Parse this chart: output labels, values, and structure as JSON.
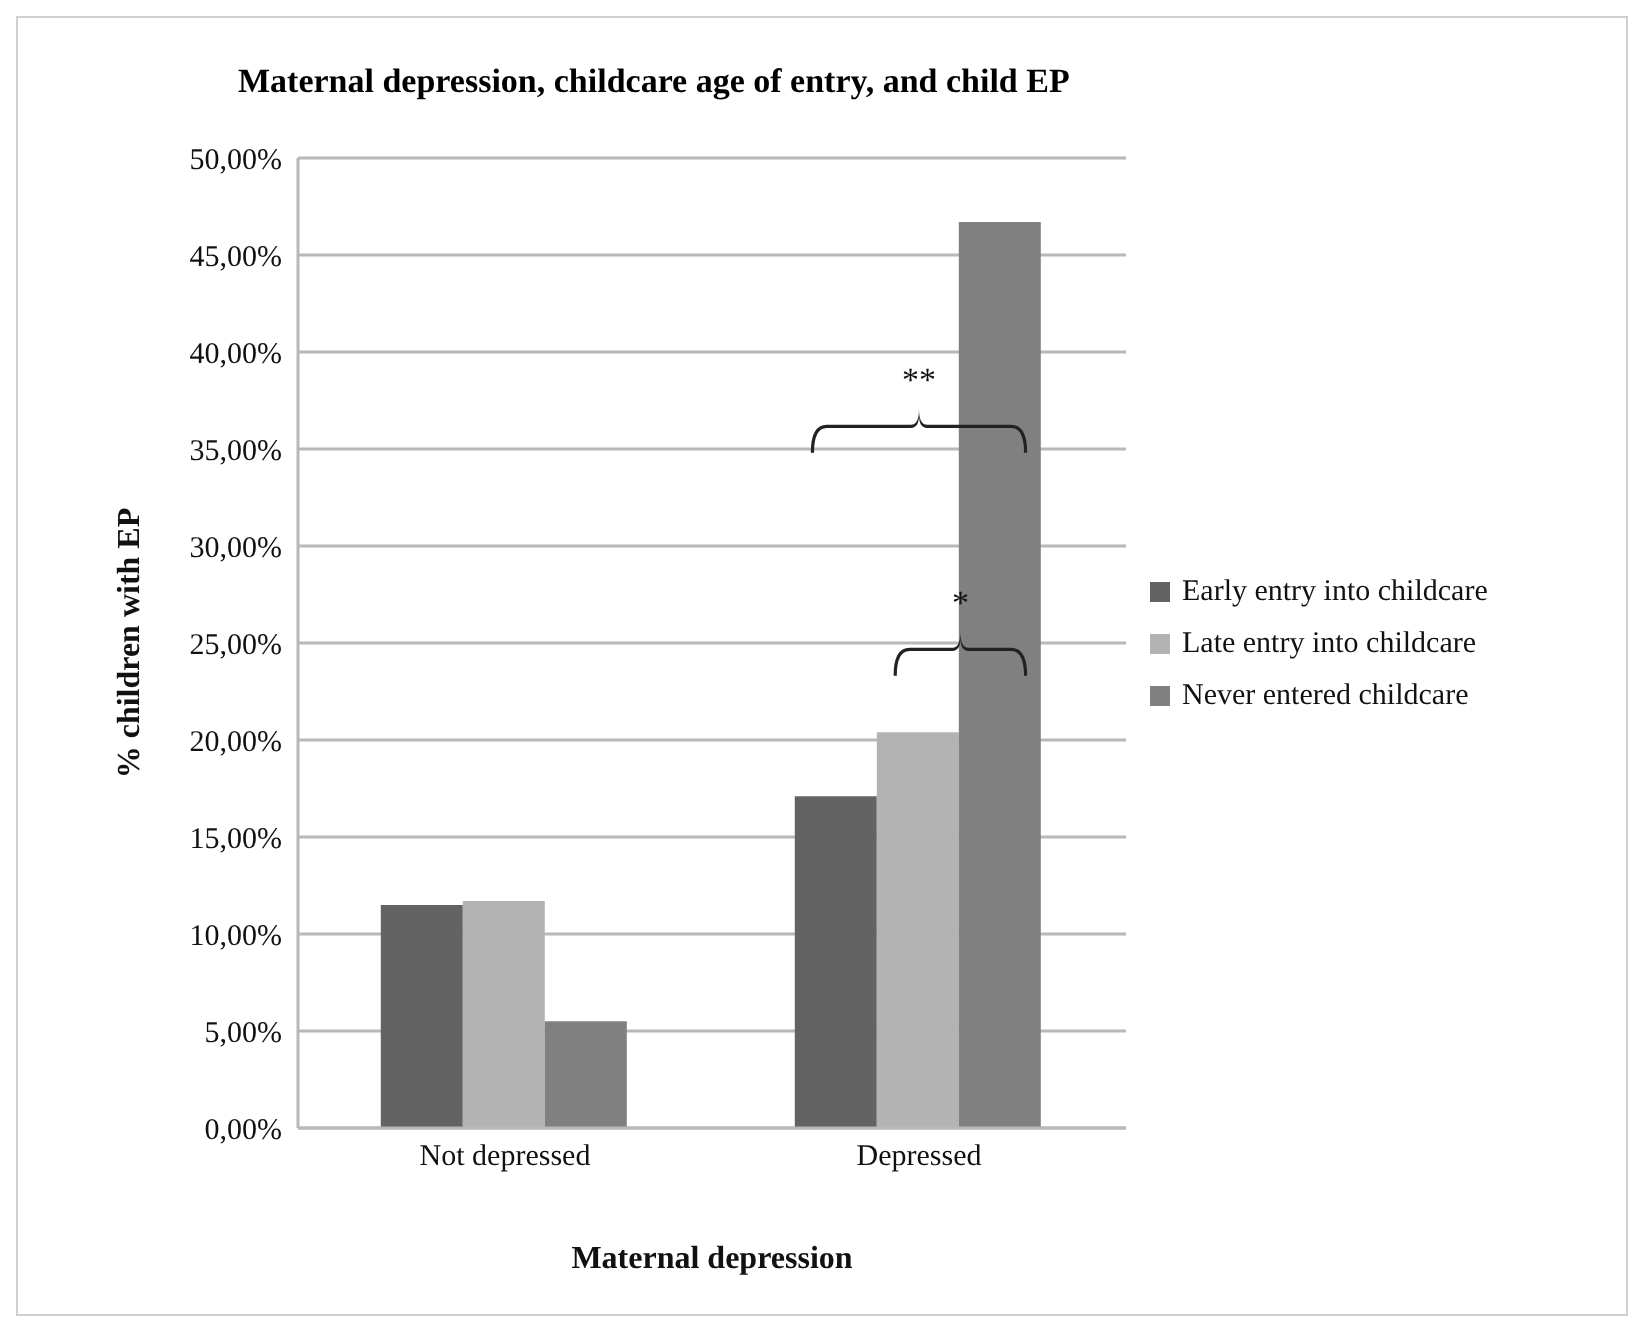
{
  "chart_data": {
    "type": "bar",
    "title": "Maternal depression, childcare age of entry, and child EP",
    "xlabel": "Maternal depression",
    "ylabel": "% children with EP",
    "categories": [
      "Not depressed",
      "Depressed"
    ],
    "series": [
      {
        "name": "Early entry into childcare",
        "color": "#636363",
        "values": [
          11.5,
          17.1
        ]
      },
      {
        "name": "Late entry into childcare",
        "color": "#b3b3b3",
        "values": [
          11.7,
          20.4
        ]
      },
      {
        "name": "Never entered childcare",
        "color": "#808080",
        "values": [
          5.5,
          46.7
        ]
      }
    ],
    "ylim": [
      0,
      50
    ],
    "yticks": [
      {
        "value": 0,
        "label": "0,00%"
      },
      {
        "value": 5,
        "label": "5,00%"
      },
      {
        "value": 10,
        "label": "10,00%"
      },
      {
        "value": 15,
        "label": "15,00%"
      },
      {
        "value": 20,
        "label": "20,00%"
      },
      {
        "value": 25,
        "label": "25,00%"
      },
      {
        "value": 30,
        "label": "30,00%"
      },
      {
        "value": 35,
        "label": "35,00%"
      },
      {
        "value": 40,
        "label": "40,00%"
      },
      {
        "value": 45,
        "label": "45,00%"
      },
      {
        "value": 50,
        "label": "50,00%"
      }
    ],
    "grid": "y",
    "legend": "right",
    "annotations": [
      "**",
      "*"
    ]
  }
}
